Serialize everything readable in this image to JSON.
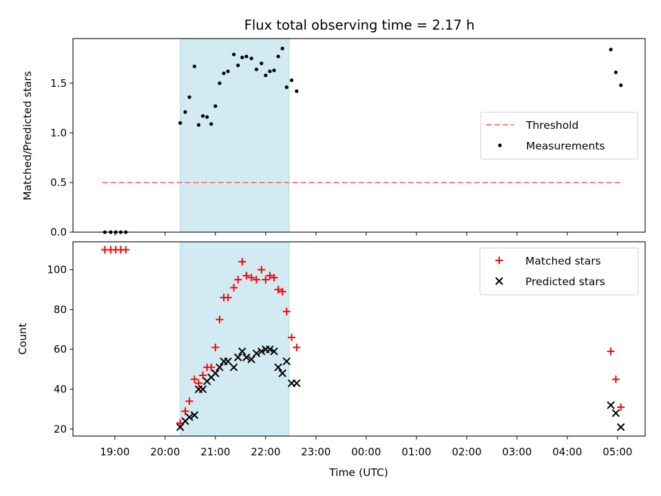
{
  "chart_data": {
    "type": "scatter",
    "title": "Flux total observing time = 2.17 h",
    "x_axis": {
      "label": "Time (UTC)",
      "range": [
        "18:10",
        "05:33"
      ],
      "ticks": [
        "19:00",
        "20:00",
        "21:00",
        "22:00",
        "23:00",
        "00:00",
        "01:00",
        "02:00",
        "03:00",
        "04:00",
        "05:00"
      ]
    },
    "shaded_interval": {
      "start": "20:18",
      "end": "22:28",
      "color": "#add8e6"
    },
    "panels": [
      {
        "id": "ratio",
        "ylabel": "Matched/Predicted stars",
        "ylim": [
          0,
          1.95
        ],
        "yticks": [
          "0.0",
          "0.5",
          "1.0",
          "1.5"
        ],
        "legend_position": "center-right",
        "series": [
          {
            "name": "Threshold",
            "kind": "dashed-line",
            "color": "#ff7f7f",
            "y": 0.5,
            "x_range": [
              "18:45",
              "05:05"
            ]
          },
          {
            "name": "Measurements",
            "kind": "dot",
            "color": "#000000",
            "points": [
              [
                "18:48",
                0
              ],
              [
                "18:55",
                0
              ],
              [
                "19:01",
                0
              ],
              [
                "19:07",
                0
              ],
              [
                "19:13",
                0
              ],
              [
                "20:18",
                1.1
              ],
              [
                "20:24",
                1.21
              ],
              [
                "20:29",
                1.36
              ],
              [
                "20:35",
                1.67
              ],
              [
                "20:40",
                1.08
              ],
              [
                "20:45",
                1.17
              ],
              [
                "20:50",
                1.16
              ],
              [
                "20:55",
                1.09
              ],
              [
                "21:00",
                1.27
              ],
              [
                "21:05",
                1.5
              ],
              [
                "21:10",
                1.6
              ],
              [
                "21:15",
                1.62
              ],
              [
                "21:22",
                1.79
              ],
              [
                "21:27",
                1.68
              ],
              [
                "21:32",
                1.76
              ],
              [
                "21:37",
                1.77
              ],
              [
                "21:43",
                1.75
              ],
              [
                "21:49",
                1.64
              ],
              [
                "21:55",
                1.7
              ],
              [
                "22:00",
                1.58
              ],
              [
                "22:05",
                1.62
              ],
              [
                "22:10",
                1.63
              ],
              [
                "22:15",
                1.77
              ],
              [
                "22:20",
                1.85
              ],
              [
                "22:25",
                1.46
              ],
              [
                "22:31",
                1.53
              ],
              [
                "22:37",
                1.42
              ],
              [
                "04:52",
                1.84
              ],
              [
                "04:58",
                1.61
              ],
              [
                "05:04",
                1.48
              ]
            ]
          }
        ]
      },
      {
        "id": "count",
        "ylabel": "Count",
        "ylim": [
          16.5,
          114
        ],
        "yticks": [
          "20",
          "40",
          "60",
          "80",
          "100"
        ],
        "legend_position": "upper-right",
        "series": [
          {
            "name": "Matched stars",
            "kind": "plus",
            "color": "#ff0000",
            "points": [
              [
                "18:48",
                110
              ],
              [
                "18:55",
                110
              ],
              [
                "19:01",
                110
              ],
              [
                "19:07",
                110
              ],
              [
                "19:13",
                110
              ],
              [
                "20:18",
                23
              ],
              [
                "20:24",
                29
              ],
              [
                "20:29",
                34
              ],
              [
                "20:35",
                45
              ],
              [
                "20:40",
                43
              ],
              [
                "20:45",
                47
              ],
              [
                "20:50",
                51
              ],
              [
                "20:55",
                51
              ],
              [
                "21:00",
                61
              ],
              [
                "21:05",
                75
              ],
              [
                "21:10",
                86
              ],
              [
                "21:15",
                86
              ],
              [
                "21:22",
                91
              ],
              [
                "21:27",
                95
              ],
              [
                "21:32",
                104
              ],
              [
                "21:37",
                97
              ],
              [
                "21:43",
                96
              ],
              [
                "21:49",
                95
              ],
              [
                "21:55",
                100
              ],
              [
                "22:00",
                95
              ],
              [
                "22:05",
                97
              ],
              [
                "22:10",
                96
              ],
              [
                "22:15",
                90
              ],
              [
                "22:20",
                89
              ],
              [
                "22:25",
                79
              ],
              [
                "22:31",
                66
              ],
              [
                "22:37",
                61
              ],
              [
                "04:52",
                59
              ],
              [
                "04:58",
                45
              ],
              [
                "05:04",
                31
              ]
            ]
          },
          {
            "name": "Predicted stars",
            "kind": "x",
            "color": "#000000",
            "points": [
              [
                "20:18",
                21
              ],
              [
                "20:24",
                24
              ],
              [
                "20:29",
                26
              ],
              [
                "20:35",
                27
              ],
              [
                "20:40",
                40
              ],
              [
                "20:45",
                40
              ],
              [
                "20:50",
                44
              ],
              [
                "20:55",
                46
              ],
              [
                "21:00",
                48
              ],
              [
                "21:05",
                51
              ],
              [
                "21:10",
                54
              ],
              [
                "21:15",
                54
              ],
              [
                "21:22",
                51
              ],
              [
                "21:27",
                56
              ],
              [
                "21:32",
                59
              ],
              [
                "21:37",
                56
              ],
              [
                "21:43",
                55
              ],
              [
                "21:49",
                58
              ],
              [
                "21:55",
                59
              ],
              [
                "22:00",
                60
              ],
              [
                "22:05",
                60
              ],
              [
                "22:10",
                59
              ],
              [
                "22:15",
                51
              ],
              [
                "22:20",
                48
              ],
              [
                "22:25",
                54
              ],
              [
                "22:31",
                43
              ],
              [
                "22:37",
                43
              ],
              [
                "04:52",
                32
              ],
              [
                "04:58",
                28
              ],
              [
                "05:04",
                21
              ]
            ]
          }
        ]
      }
    ]
  }
}
